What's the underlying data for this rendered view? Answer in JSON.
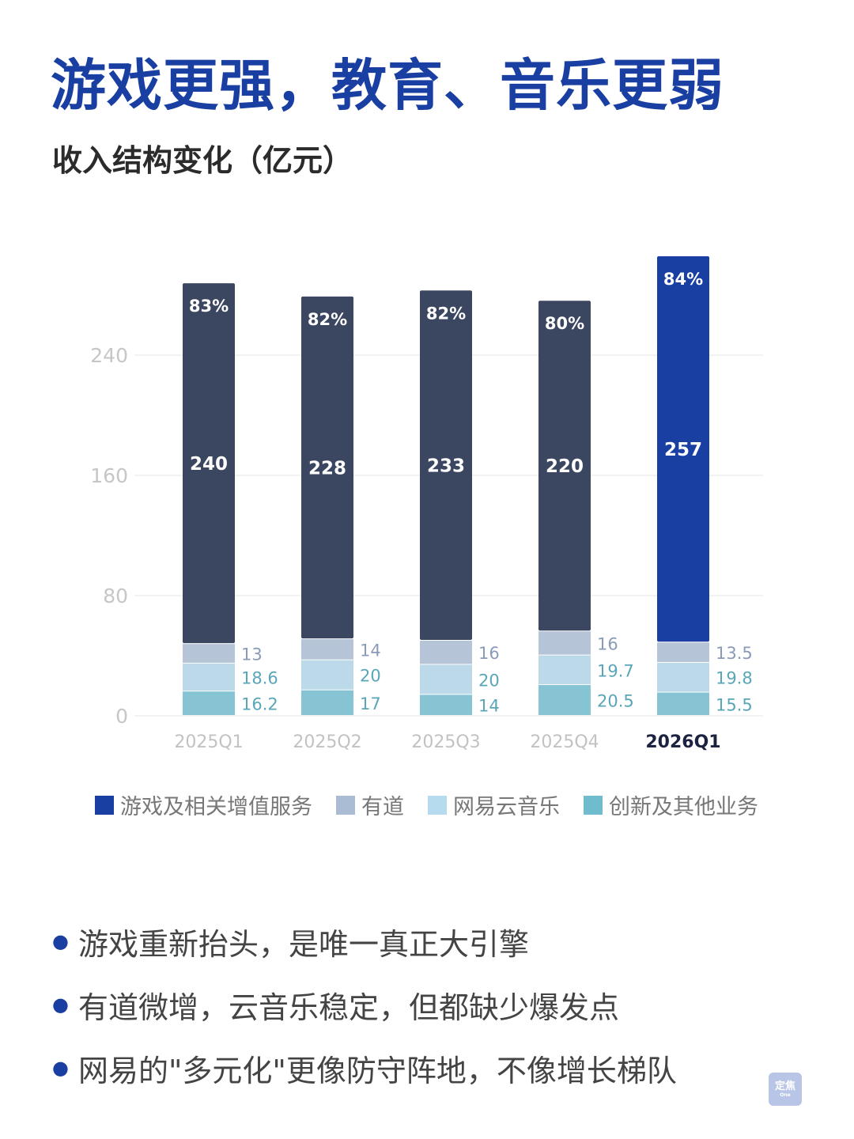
{
  "title": "游戏更强，教育、音乐更弱",
  "subtitle": "收入结构变化（亿元）",
  "colors": {
    "game": "#3b4660",
    "game_highlight": "#1a3fa3",
    "youdao": "#b5c4d6",
    "music": "#bcd9ea",
    "other": "#86c4d4",
    "title": "#1a3fa3",
    "legend_game": "#1a3fa3",
    "legend_youdao": "#a9bcd3",
    "legend_music": "#b6dbee",
    "legend_other": "#6fbccf"
  },
  "chart_data": {
    "type": "bar",
    "stacked": true,
    "categories": [
      "2025Q1",
      "2025Q2",
      "2025Q3",
      "2025Q4",
      "2026Q1"
    ],
    "highlight_category": "2026Q1",
    "series": [
      {
        "name": "创新及其他业务",
        "values": [
          16.2,
          17,
          14,
          20.5,
          15.5
        ]
      },
      {
        "name": "网易云音乐",
        "values": [
          18.6,
          20,
          20,
          19.7,
          19.8
        ]
      },
      {
        "name": "有道",
        "values": [
          13,
          14,
          16,
          16,
          13.5
        ]
      },
      {
        "name": "游戏及相关增值服务",
        "values": [
          240,
          228,
          233,
          220,
          257
        ]
      }
    ],
    "game_share_labels": [
      "83%",
      "82%",
      "82%",
      "80%",
      "84%"
    ],
    "ylim": [
      0,
      275
    ],
    "yticks": [
      0,
      80,
      160,
      240
    ],
    "grid": true,
    "legend_position": "bottom"
  },
  "legend": [
    {
      "label": "游戏及相关增值服务",
      "color_key": "legend_game"
    },
    {
      "label": "有道",
      "color_key": "legend_youdao"
    },
    {
      "label": "网易云音乐",
      "color_key": "legend_music"
    },
    {
      "label": "创新及其他业务",
      "color_key": "legend_other"
    }
  ],
  "bullets": [
    "游戏重新抬头，是唯一真正大引擎",
    "有道微增，云音乐稳定，但都缺少爆发点",
    "网易的\"多元化\"更像防守阵地，不像增长梯队"
  ],
  "watermark": {
    "text": "定焦",
    "sub": "One"
  }
}
